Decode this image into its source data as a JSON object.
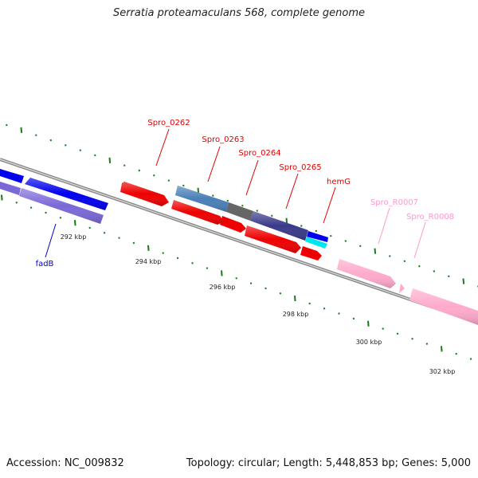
{
  "title": "Serratia proteamaculans 568, complete genome",
  "footer": {
    "accession": "Accession: NC_009832",
    "summary": "Topology: circular; Length: 5,448,853 bp; Genes: 5,000"
  },
  "colors": {
    "backbone": "#8a8a8a",
    "tick": "#1a7a1a",
    "gene_blue": "#0000ee",
    "gene_purple": "#7b68d8",
    "gene_red": "#ee0000",
    "gene_steelblue": "#4a7fb8",
    "gene_gray": "#666666",
    "gene_navy": "#3a3a8a",
    "gene_cyan": "#00e5ee",
    "gene_pink": "#ffaacc",
    "label_red": "#dd0000",
    "label_blue": "#0000cc",
    "label_pink": "#ff99cc"
  },
  "ruler_labels": [
    "292 kbp",
    "294 kbp",
    "296 kbp",
    "298 kbp",
    "300 kbp",
    "302 kbp"
  ],
  "gene_labels": [
    {
      "text": "Spro_0262",
      "color": "label_red"
    },
    {
      "text": "Spro_0263",
      "color": "label_red"
    },
    {
      "text": "Spro_0264",
      "color": "label_red"
    },
    {
      "text": "Spro_0265",
      "color": "label_red"
    },
    {
      "text": "hemG",
      "color": "label_red"
    },
    {
      "text": "Spro_R0007",
      "color": "label_pink"
    },
    {
      "text": "Spro_R0008",
      "color": "label_pink"
    },
    {
      "text": "fadB",
      "color": "label_blue"
    }
  ]
}
